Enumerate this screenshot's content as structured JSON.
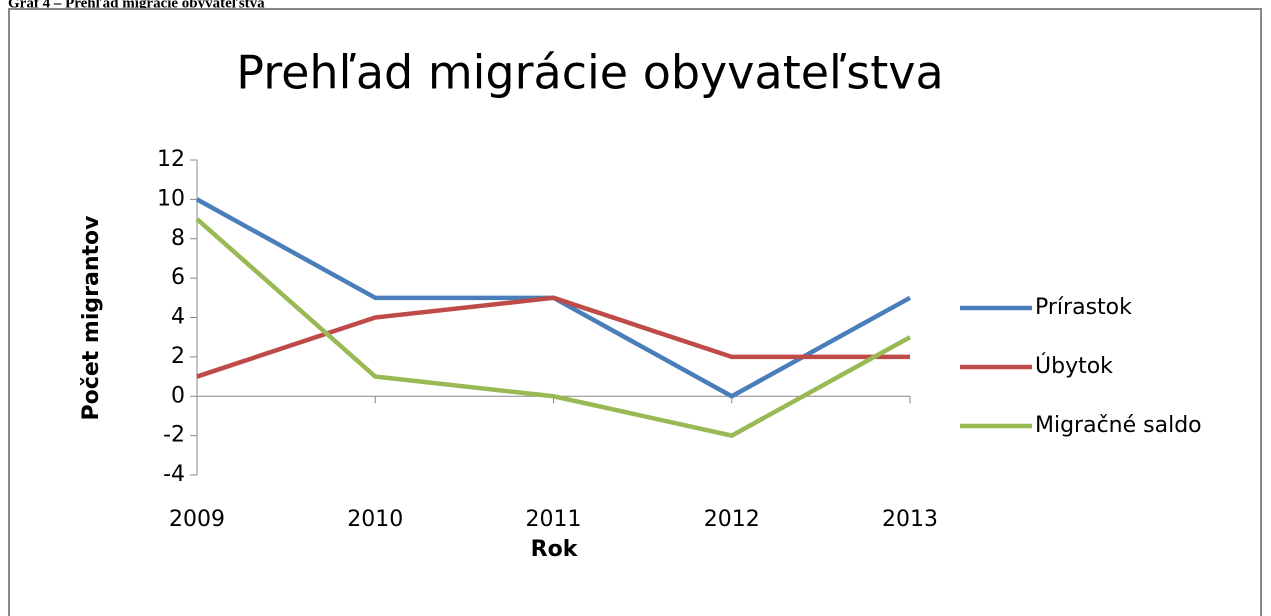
{
  "caption": "Graf 4 – Prehľad migrácie obyvateľstva",
  "chart_data": {
    "type": "line",
    "title": "Prehľad migrácie obyvateľstva",
    "x_label": "Rok",
    "y_label": "Počet migrantov",
    "categories": [
      "2009",
      "2010",
      "2011",
      "2012",
      "2013"
    ],
    "series": [
      {
        "name": "Prírastok",
        "color": "#4a7ebb",
        "values": [
          10,
          5,
          5,
          0,
          5
        ]
      },
      {
        "name": "Úbytok",
        "color": "#be4b48",
        "values": [
          1,
          4,
          5,
          2,
          2
        ]
      },
      {
        "name": "Migračné saldo",
        "color": "#98b954",
        "values": [
          9,
          1,
          0,
          -2,
          3
        ]
      }
    ],
    "ylim": [
      -4,
      12
    ],
    "yticks": [
      -4,
      -2,
      0,
      2,
      4,
      6,
      8,
      10,
      12
    ],
    "grid": false,
    "legend": "right"
  }
}
